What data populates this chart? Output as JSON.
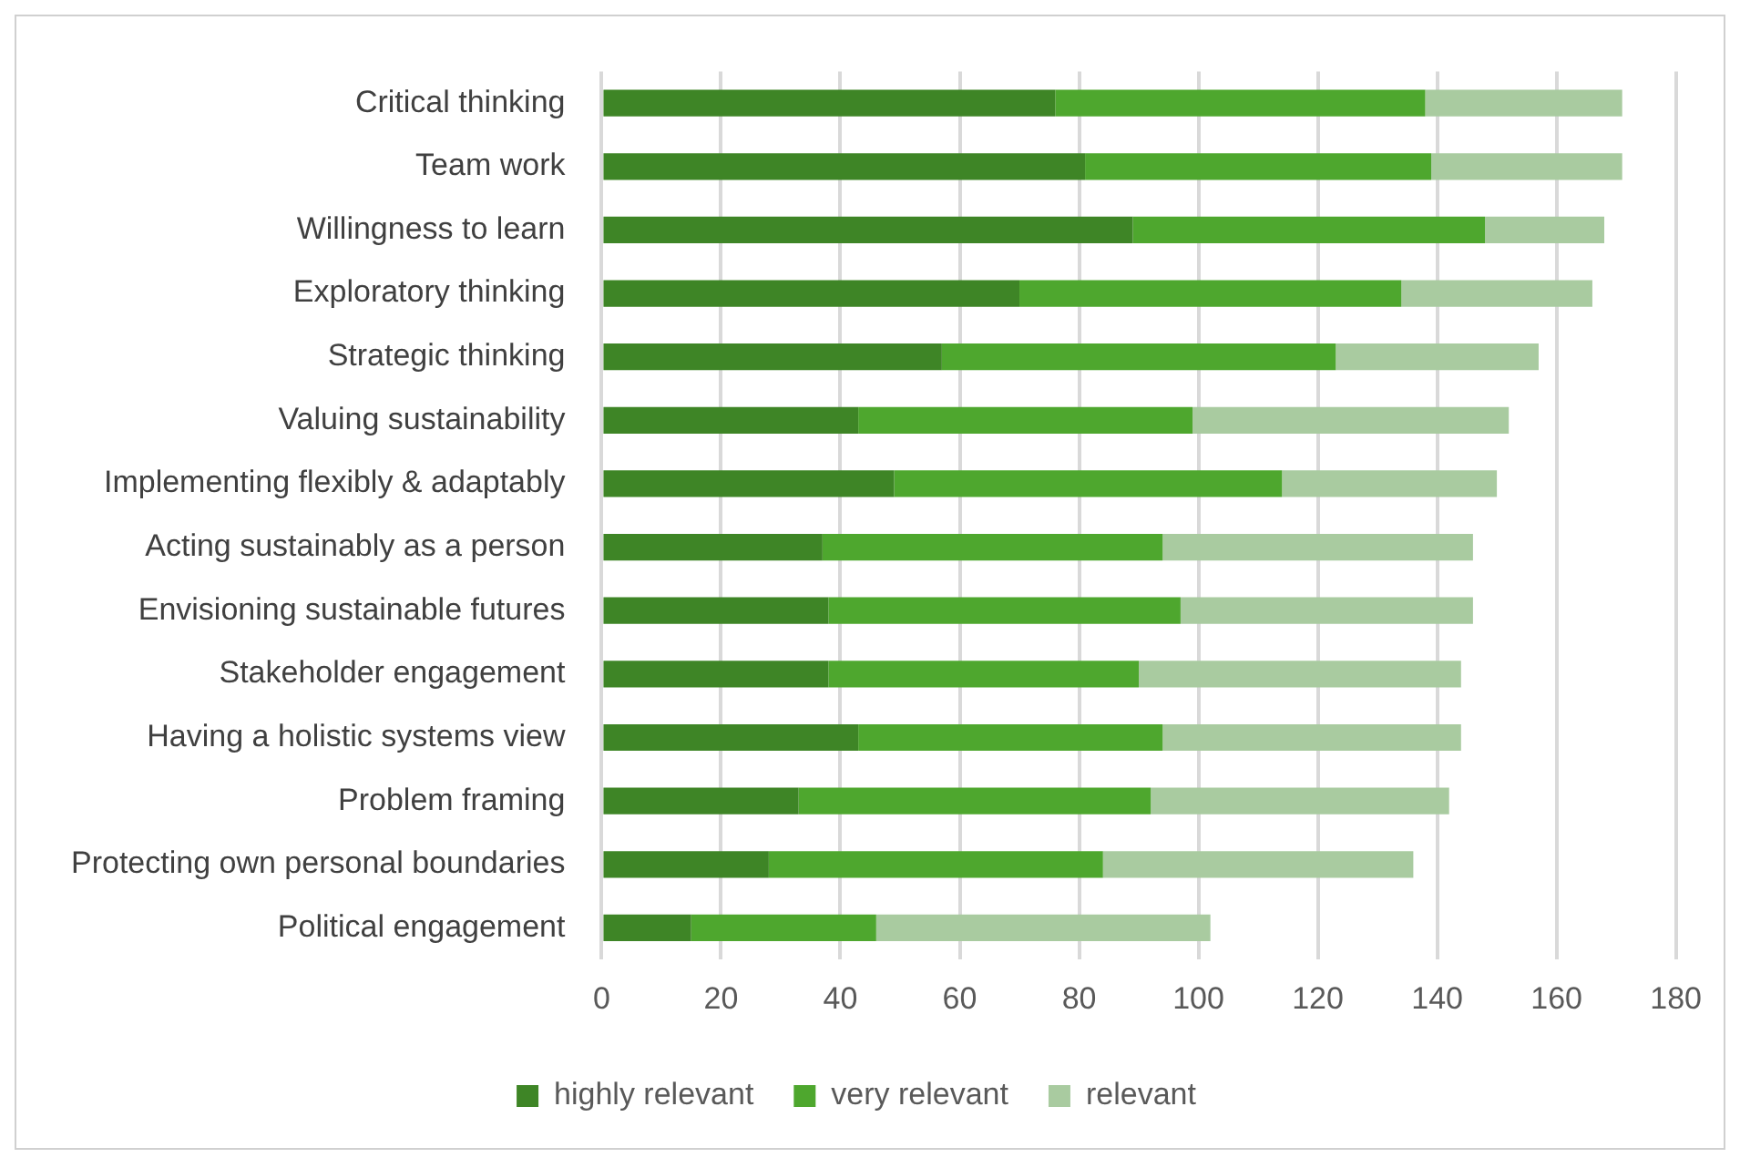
{
  "chart_data": {
    "type": "bar",
    "orientation": "horizontal",
    "stacked": true,
    "categories": [
      "Critical thinking",
      "Team work",
      "Willingness to learn",
      "Exploratory thinking",
      "Strategic thinking",
      "Valuing sustainability",
      "Implementing flexibly & adaptably",
      "Acting sustainably as a person",
      "Envisioning sustainable futures",
      "Stakeholder engagement",
      "Having a holistic systems view",
      "Problem framing",
      "Protecting own personal boundaries",
      "Political engagement"
    ],
    "series": [
      {
        "name": "highly relevant",
        "color": "#3e8526",
        "values": [
          76,
          81,
          89,
          70,
          57,
          43,
          49,
          37,
          38,
          38,
          43,
          33,
          28,
          15
        ]
      },
      {
        "name": "very relevant",
        "color": "#4ea72e",
        "values": [
          62,
          58,
          59,
          64,
          66,
          56,
          65,
          57,
          59,
          52,
          51,
          59,
          56,
          31
        ]
      },
      {
        "name": "relevant",
        "color": "#a9cba0",
        "values": [
          33,
          32,
          20,
          32,
          34,
          53,
          36,
          52,
          49,
          54,
          50,
          50,
          52,
          56
        ]
      }
    ],
    "xlim": [
      0,
      180
    ],
    "xticks": [
      0,
      20,
      40,
      60,
      80,
      100,
      120,
      140,
      160,
      180
    ],
    "grid": "x",
    "legend": "bottom"
  }
}
